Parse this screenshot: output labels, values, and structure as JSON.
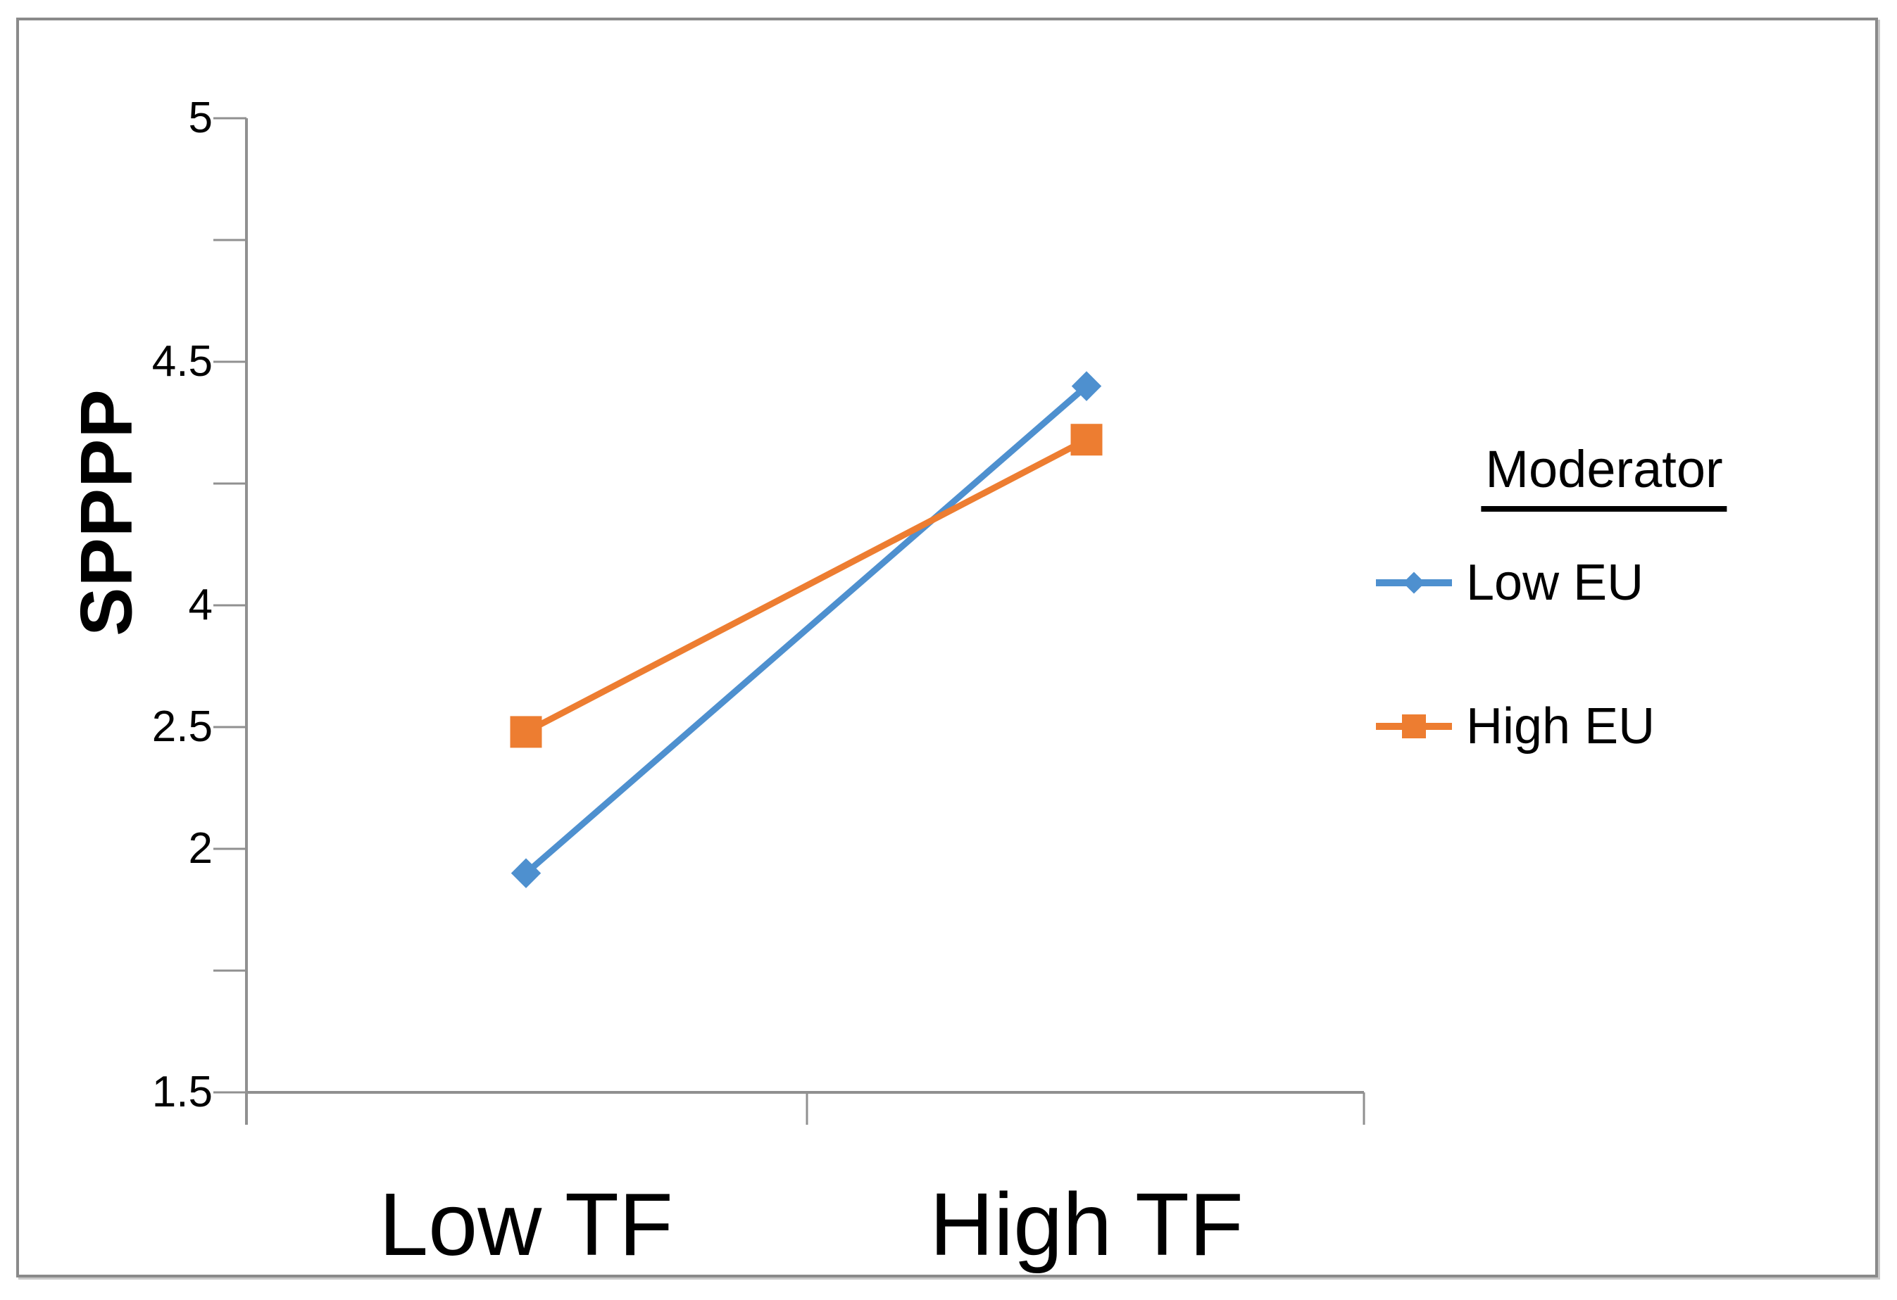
{
  "figure": {
    "y_axis_title": "SPPPP",
    "legend": {
      "title": "Moderator"
    },
    "colors": {
      "axis": "#909090",
      "frame_border": "#8a8a8a",
      "text": "#000000",
      "background": "#ffffff",
      "series_blue": "#4E90CF",
      "series_orange": "#ED7D31"
    }
  },
  "chart_data": {
    "type": "line",
    "title": "",
    "xlabel": "",
    "ylabel": "SPPPP",
    "categories": [
      "Low TF",
      "High TF"
    ],
    "series": [
      {
        "name": "Low EU",
        "color": "#4E90CF",
        "marker": "diamond",
        "values": [
          1.95,
          4.45
        ]
      },
      {
        "name": "High EU",
        "color": "#ED7D31",
        "marker": "square",
        "values": [
          2.48,
          4.34
        ]
      }
    ],
    "y_axis_ticks": [
      {
        "label": "5",
        "value": 5.0
      },
      {
        "label": "",
        "value": 4.75
      },
      {
        "label": "4.5",
        "value": 4.5
      },
      {
        "label": "",
        "value": 4.25
      },
      {
        "label": "4",
        "value": 4.0
      },
      {
        "label": "2.5",
        "value": 2.5
      },
      {
        "label": "2",
        "value": 2.0
      },
      {
        "label": "",
        "value": 1.75
      },
      {
        "label": "1.5",
        "value": 1.5
      }
    ],
    "grid": false,
    "legend_position": "right"
  }
}
